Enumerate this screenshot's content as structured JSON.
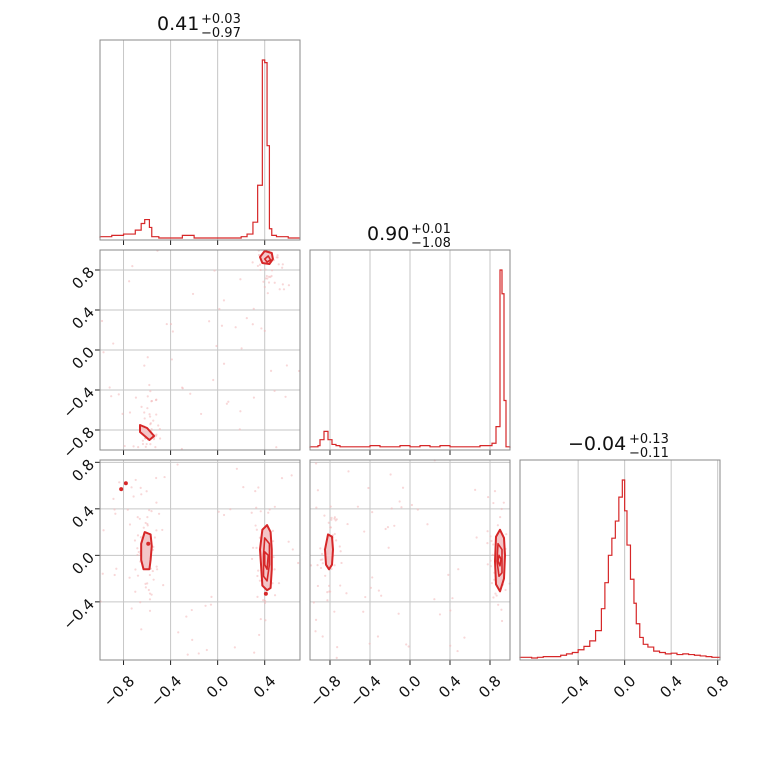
{
  "figure": {
    "line_color": "#d62728",
    "fill_color": "#f3c6c8",
    "point_color": "#f2b6b8"
  },
  "titles": [
    {
      "value": "0.41",
      "plus": "+0.03",
      "minus": "−0.97"
    },
    {
      "value": "0.90",
      "plus": "+0.01",
      "minus": "−1.08"
    },
    {
      "value": "−0.04",
      "plus": "+0.13",
      "minus": "−0.11"
    }
  ],
  "chart_data": {
    "type": "corner",
    "grid": true,
    "parameters": [
      {
        "range": [
          -1.0,
          0.7
        ],
        "ticks": [
          -0.8,
          -0.4,
          0.0,
          0.4
        ],
        "tick_labels": [
          "−0.8",
          "−0.4",
          "0.0",
          "0.4"
        ]
      },
      {
        "range": [
          -1.0,
          1.0
        ],
        "ticks": [
          -0.8,
          -0.4,
          0.0,
          0.4,
          0.8
        ],
        "tick_labels": [
          "−0.8",
          "−0.4",
          "0.0",
          "0.4",
          "0.8"
        ]
      },
      {
        "range": [
          -0.9,
          0.82
        ],
        "ticks": [
          -0.4,
          0.0,
          0.4,
          0.8
        ],
        "tick_labels": [
          "−0.4",
          "0.0",
          "0.4",
          "0.8"
        ]
      }
    ],
    "row_ticks": {
      "1": {
        "ticks": [
          -0.8,
          -0.4,
          0.0,
          0.4,
          0.8
        ],
        "tick_labels": [
          "−0.8",
          "−0.4",
          "0.0",
          "0.4",
          "0.8"
        ]
      },
      "2": {
        "ticks": [
          -0.4,
          0.0,
          0.4,
          0.8
        ],
        "tick_labels": [
          "−0.4",
          "0.0",
          "0.4",
          "0.8"
        ]
      }
    },
    "histograms": [
      {
        "bin_edges": [
          -1.0,
          -0.9,
          -0.8,
          -0.7,
          -0.65,
          -0.62,
          -0.6,
          -0.58,
          -0.56,
          -0.5,
          -0.3,
          -0.2,
          0.2,
          0.25,
          0.3,
          0.34,
          0.38,
          0.4,
          0.42,
          0.44,
          0.46,
          0.5,
          0.6,
          0.7
        ],
        "counts": [
          1,
          2,
          3,
          6,
          11,
          14,
          14,
          8,
          1,
          0,
          2,
          0,
          1,
          3,
          12,
          40,
          135,
          133,
          70,
          7,
          2,
          1,
          0
        ]
      },
      {
        "bin_edges": [
          -1.0,
          -0.92,
          -0.9,
          -0.86,
          -0.82,
          -0.78,
          -0.74,
          -0.7,
          -0.6,
          -0.5,
          -0.4,
          -0.3,
          -0.2,
          -0.1,
          0.0,
          0.1,
          0.2,
          0.3,
          0.4,
          0.5,
          0.6,
          0.7,
          0.82,
          0.86,
          0.9,
          0.92,
          0.94,
          0.96,
          1.0
        ],
        "counts": [
          1,
          2,
          7,
          14,
          7,
          3,
          2,
          1,
          1,
          1,
          2,
          1,
          1,
          2,
          1,
          2,
          1,
          2,
          1,
          1,
          1,
          2,
          4,
          18,
          150,
          130,
          40,
          1
        ]
      },
      {
        "bin_edges": [
          -0.9,
          -0.85,
          -0.8,
          -0.75,
          -0.7,
          -0.65,
          -0.6,
          -0.55,
          -0.5,
          -0.45,
          -0.4,
          -0.35,
          -0.3,
          -0.25,
          -0.2,
          -0.17,
          -0.14,
          -0.11,
          -0.08,
          -0.05,
          -0.02,
          0.0,
          0.02,
          0.05,
          0.08,
          0.1,
          0.13,
          0.16,
          0.2,
          0.25,
          0.3,
          0.35,
          0.4,
          0.45,
          0.5,
          0.55,
          0.6,
          0.65,
          0.7,
          0.75,
          0.82
        ],
        "counts": [
          1,
          1,
          0,
          1,
          2,
          2,
          2,
          4,
          6,
          8,
          12,
          17,
          25,
          40,
          72,
          110,
          150,
          175,
          200,
          235,
          260,
          215,
          165,
          115,
          80,
          50,
          30,
          20,
          16,
          10,
          8,
          6,
          7,
          5,
          6,
          5,
          4,
          3,
          2,
          1
        ]
      }
    ],
    "contours": [
      {
        "row": 1,
        "col": 0,
        "shapes": [
          {
            "points": [
              [
                0.36,
                0.93
              ],
              [
                0.4,
                0.99
              ],
              [
                0.46,
                0.97
              ],
              [
                0.47,
                0.91
              ],
              [
                0.44,
                0.86
              ],
              [
                0.38,
                0.87
              ]
            ]
          },
          {
            "points": [
              [
                -0.66,
                -0.75
              ],
              [
                -0.6,
                -0.78
              ],
              [
                -0.54,
                -0.86
              ],
              [
                -0.58,
                -0.9
              ],
              [
                -0.66,
                -0.82
              ]
            ]
          }
        ],
        "inner": [
          {
            "points": [
              [
                0.4,
                0.91
              ],
              [
                0.43,
                0.94
              ],
              [
                0.45,
                0.9
              ],
              [
                0.42,
                0.88
              ]
            ]
          }
        ]
      },
      {
        "row": 2,
        "col": 0,
        "shapes": [
          {
            "points": [
              [
                -0.62,
                0.2
              ],
              [
                -0.57,
                0.18
              ],
              [
                -0.56,
                0.08
              ],
              [
                -0.57,
                -0.04
              ],
              [
                -0.58,
                -0.12
              ],
              [
                -0.63,
                -0.12
              ],
              [
                -0.65,
                -0.04
              ],
              [
                -0.65,
                0.1
              ]
            ]
          },
          {
            "points": [
              [
                0.38,
                0.22
              ],
              [
                0.42,
                0.26
              ],
              [
                0.45,
                0.2
              ],
              [
                0.46,
                0.05
              ],
              [
                0.46,
                -0.12
              ],
              [
                0.45,
                -0.28
              ],
              [
                0.42,
                -0.3
              ],
              [
                0.38,
                -0.26
              ],
              [
                0.37,
                -0.1
              ],
              [
                0.36,
                0.05
              ]
            ]
          }
        ],
        "inner": [
          {
            "points": [
              [
                0.4,
                0.15
              ],
              [
                0.44,
                0.1
              ],
              [
                0.44,
                -0.08
              ],
              [
                0.42,
                -0.22
              ],
              [
                0.39,
                -0.18
              ],
              [
                0.39,
                0.0
              ]
            ]
          },
          {
            "points": [
              [
                0.4,
                0.03
              ],
              [
                0.43,
                0.0
              ],
              [
                0.42,
                -0.12
              ],
              [
                0.4,
                -0.08
              ]
            ]
          }
        ]
      },
      {
        "row": 2,
        "col": 1,
        "shapes": [
          {
            "points": [
              [
                -0.82,
                0.18
              ],
              [
                -0.78,
                0.16
              ],
              [
                -0.77,
                0.05
              ],
              [
                -0.78,
                -0.08
              ],
              [
                -0.81,
                -0.12
              ],
              [
                -0.84,
                -0.08
              ],
              [
                -0.85,
                0.05
              ]
            ]
          },
          {
            "points": [
              [
                0.86,
                0.16
              ],
              [
                0.9,
                0.22
              ],
              [
                0.94,
                0.15
              ],
              [
                0.95,
                0.0
              ],
              [
                0.94,
                -0.2
              ],
              [
                0.9,
                -0.31
              ],
              [
                0.86,
                -0.25
              ],
              [
                0.85,
                -0.05
              ]
            ]
          }
        ],
        "inner": [
          {
            "points": [
              [
                0.88,
                0.1
              ],
              [
                0.92,
                0.05
              ],
              [
                0.92,
                -0.15
              ],
              [
                0.89,
                -0.18
              ],
              [
                0.87,
                -0.05
              ]
            ]
          },
          {
            "points": [
              [
                0.89,
                0.0
              ],
              [
                0.91,
                -0.03
              ],
              [
                0.9,
                -0.09
              ],
              [
                0.88,
                -0.05
              ]
            ]
          }
        ]
      }
    ],
    "highlight_points": [
      {
        "row": 2,
        "col": 0,
        "x": -0.82,
        "y": 0.57
      },
      {
        "row": 2,
        "col": 0,
        "x": -0.78,
        "y": 0.62
      },
      {
        "row": 2,
        "col": 0,
        "x": -0.59,
        "y": 0.1
      },
      {
        "row": 2,
        "col": 0,
        "x": 0.41,
        "y": -0.33
      }
    ]
  }
}
